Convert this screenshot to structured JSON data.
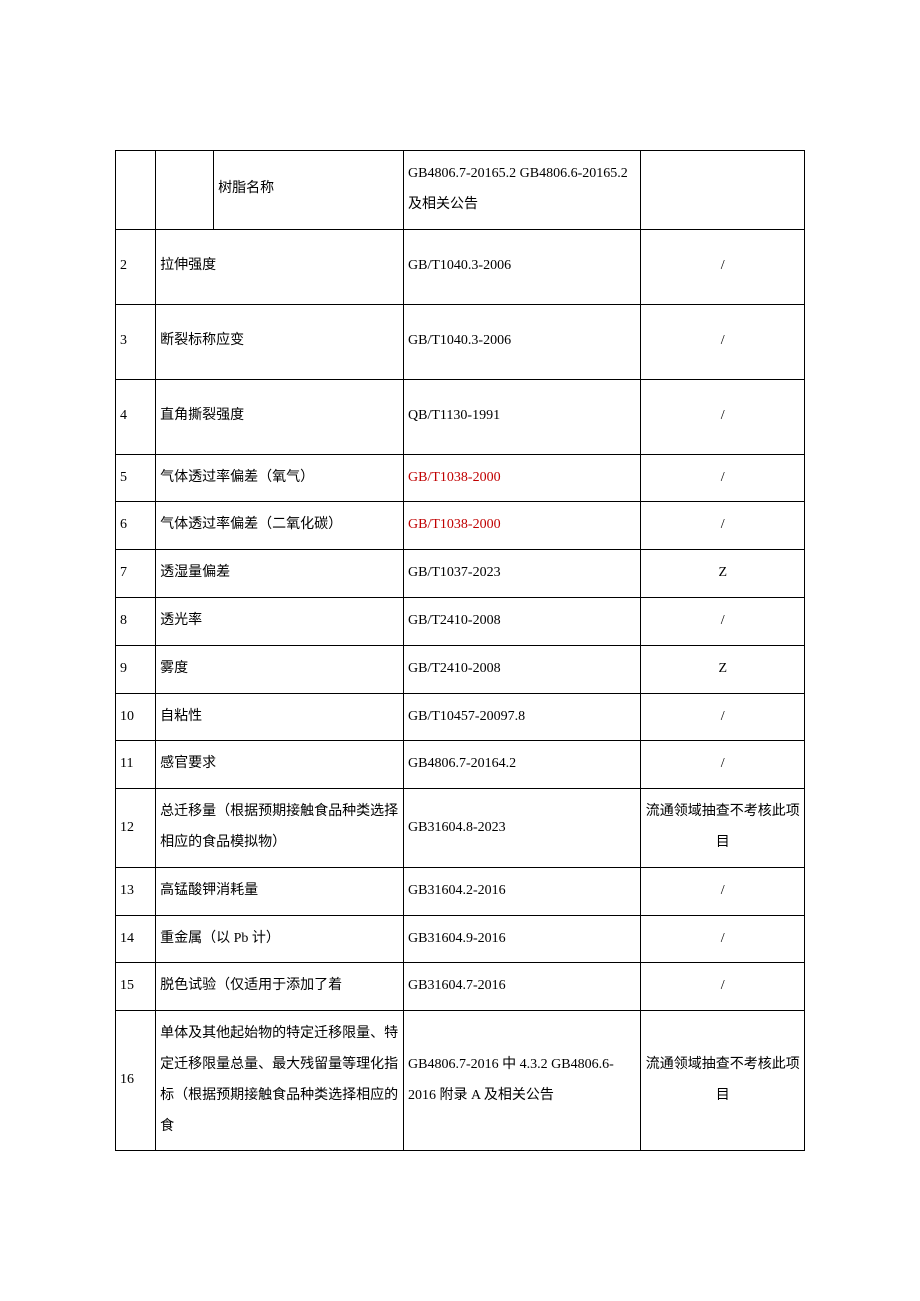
{
  "rows": {
    "r1": {
      "sub2": "树脂名称",
      "std": "GB4806.7-20165.2 GB4806.6-20165.2 及相关公告"
    },
    "r2": {
      "num": "2",
      "name": "拉伸强度",
      "std": "GB/T1040.3-2006",
      "note": "/"
    },
    "r3": {
      "num": "3",
      "name": "断裂标称应变",
      "std": "GB/T1040.3-2006",
      "note": "/"
    },
    "r4": {
      "num": "4",
      "name": "直角撕裂强度",
      "std": "QB/T1130-1991",
      "note": "/"
    },
    "r5": {
      "num": "5",
      "name": "气体透过率偏差（氧气）",
      "std": "GB/T1038-2000",
      "note": "/"
    },
    "r6": {
      "num": "6",
      "name": "气体透过率偏差（二氧化碳）",
      "std": "GB/T1038-2000",
      "note": "/"
    },
    "r7": {
      "num": "7",
      "name": "透湿量偏差",
      "std": "GB/T1037-2023",
      "note": "Z"
    },
    "r8": {
      "num": "8",
      "name": "透光率",
      "std": "GB/T2410-2008",
      "note": "/"
    },
    "r9": {
      "num": "9",
      "name": "雾度",
      "std": "GB/T2410-2008",
      "note": "Z"
    },
    "r10": {
      "num": "10",
      "name": "自粘性",
      "std": "GB/T10457-20097.8",
      "note": "/"
    },
    "r11": {
      "num": "11",
      "name": "感官要求",
      "std": "GB4806.7-20164.2",
      "note": "/"
    },
    "r12": {
      "num": "12",
      "name": "总迁移量（根据预期接触食品种类选择相应的食品模拟物）",
      "std": "GB31604.8-2023",
      "note": "流通领域抽查不考核此项目"
    },
    "r13": {
      "num": "13",
      "name": "高锰酸钾消耗量",
      "std": "GB31604.2-2016",
      "note": "/"
    },
    "r14": {
      "num": "14",
      "name": "重金属（以 Pb 计）",
      "std": "GB31604.9-2016",
      "note": "/"
    },
    "r15": {
      "num": "15",
      "name": "脱色试验（仅适用于添加了着",
      "std": "GB31604.7-2016",
      "note": "/"
    },
    "r16": {
      "num": "16",
      "name": "单体及其他起始物的特定迁移限量、特定迁移限量总量、最大残留量等理化指标（根据预期接触食品种类选择相应的食",
      "std": "GB4806.7-2016 中 4.3.2 GB4806.6-2016 附录 A 及相关公告",
      "note": "流通领域抽查不考核此项目"
    }
  },
  "colors": {
    "border": "#000000",
    "text": "#000000",
    "red": "#c00000",
    "background": "#ffffff"
  },
  "font": {
    "family": "SimSun",
    "size": 14
  }
}
